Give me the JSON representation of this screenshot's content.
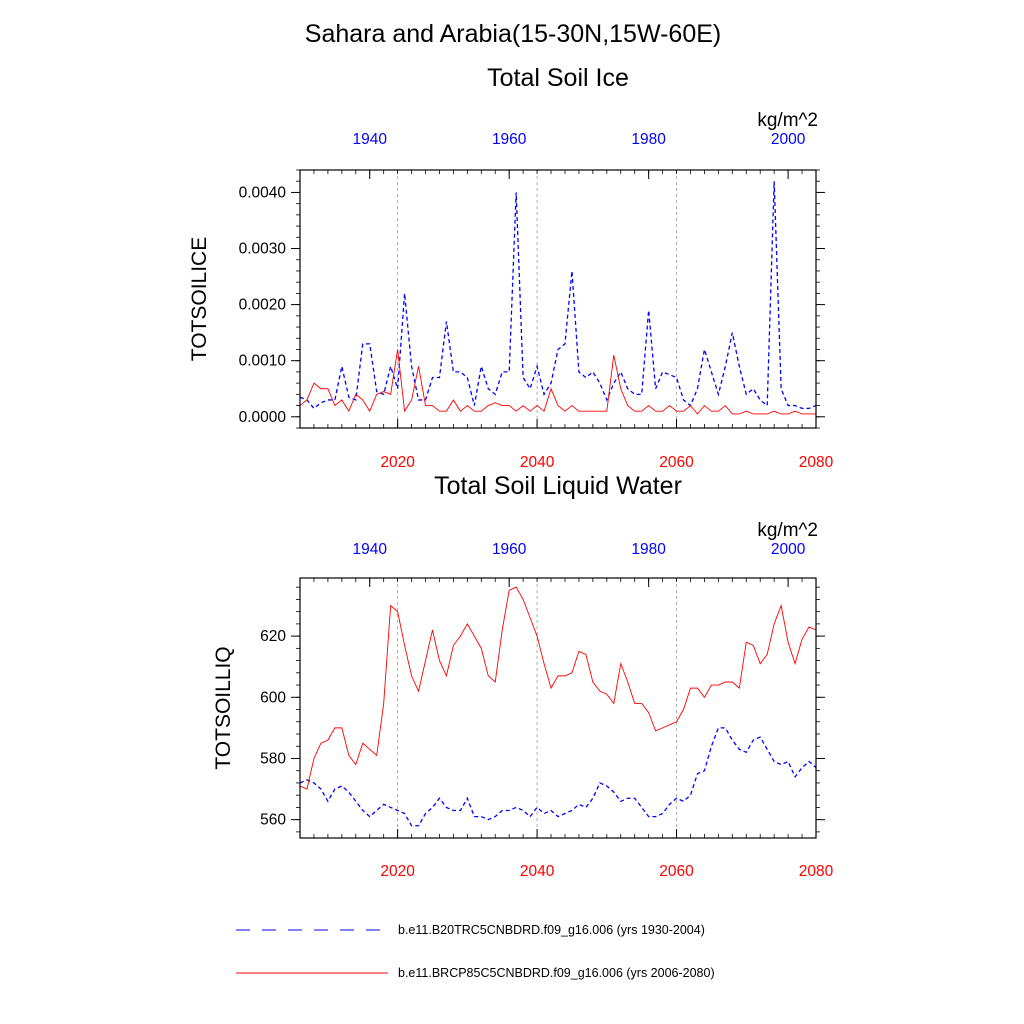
{
  "main_title": "Sahara and Arabia(15-30N,15W-60E)",
  "legend": [
    {
      "label": "b.e11.B20TRC5CNBDRD.f09_g16.006 (yrs 1930-2004)",
      "color": "#0000ff",
      "style": "dashed"
    },
    {
      "label": "b.e11.BRCP85C5CNBDRD.f09_g16.006 (yrs 2006-2080)",
      "color": "#ff0000",
      "style": "solid"
    }
  ],
  "colors": {
    "historical": "#0000ff",
    "future": "#ff0000",
    "grid": "#999999"
  },
  "chart_data": [
    {
      "type": "line",
      "title": "Total Soil Ice",
      "ylabel": "TOTSOILICE",
      "units": "kg/m^2",
      "ylim": [
        -0.0002,
        0.0044
      ],
      "yticks": [
        0.0,
        0.001,
        0.002,
        0.003,
        0.004
      ],
      "ytick_labels": [
        "0.0000",
        "0.0010",
        "0.0020",
        "0.0030",
        "0.0040"
      ],
      "bottom_xaxis": {
        "range": [
          2006,
          2080
        ],
        "ticks": [
          2020,
          2040,
          2060,
          2080
        ],
        "color": "#ff0000"
      },
      "top_xaxis": {
        "range": [
          1930,
          2004
        ],
        "ticks": [
          1940,
          1960,
          1980,
          2000
        ],
        "color": "#0000ff"
      },
      "vertical_gridlines": [
        2020,
        2040,
        2060
      ],
      "series": [
        {
          "name": "b.e11.B20TRC5CNBDRD.f09_g16.006 (yrs 1930-2004)",
          "axis": "top",
          "start": 1930,
          "color": "#0000ff",
          "dash": true,
          "values": [
            0.00035,
            0.0003,
            0.00015,
            0.00025,
            0.0003,
            0.0003,
            0.0009,
            0.00035,
            0.0003,
            0.0013,
            0.0013,
            0.00045,
            0.0004,
            0.0009,
            0.0005,
            0.0022,
            0.0009,
            0.0003,
            0.0003,
            0.0007,
            0.0007,
            0.0017,
            0.0008,
            0.0008,
            0.0007,
            0.0002,
            0.0009,
            0.0005,
            0.0004,
            0.0008,
            0.0008,
            0.004,
            0.0007,
            0.0005,
            0.0009,
            0.0004,
            0.0006,
            0.0012,
            0.0013,
            0.0026,
            0.0008,
            0.0007,
            0.0008,
            0.0006,
            0.0003,
            0.0006,
            0.0008,
            0.0005,
            0.0004,
            0.0004,
            0.0019,
            0.0005,
            0.0008,
            0.00075,
            0.0007,
            0.0003,
            0.0002,
            0.0005,
            0.0012,
            0.0008,
            0.0004,
            0.0009,
            0.0015,
            0.0009,
            0.0004,
            0.0005,
            0.0003,
            0.0002,
            0.0042,
            0.0005,
            0.0002,
            0.0002,
            0.00015,
            0.00015,
            0.0002
          ]
        },
        {
          "name": "b.e11.BRCP85C5CNBDRD.f09_g16.006 (yrs 2006-2080)",
          "axis": "bottom",
          "start": 2006,
          "color": "#ff0000",
          "dash": false,
          "values": [
            0.0002,
            0.0003,
            0.0006,
            0.0005,
            0.0005,
            0.0002,
            0.0003,
            0.0001,
            0.0004,
            0.0003,
            0.0001,
            0.0004,
            0.00045,
            0.0004,
            0.0012,
            0.0001,
            0.0003,
            0.0009,
            0.0002,
            0.0002,
            0.0001,
            0.0001,
            0.0003,
            0.0001,
            0.0002,
            0.0001,
            0.0001,
            0.0002,
            0.00025,
            0.0002,
            0.0002,
            0.0001,
            0.0002,
            0.0001,
            0.0002,
            0.0001,
            0.0005,
            0.0002,
            0.0001,
            0.0002,
            0.0001,
            0.0001,
            0.0001,
            0.0001,
            0.0001,
            0.0011,
            0.0005,
            0.0002,
            0.0001,
            0.0001,
            0.0002,
            0.0001,
            0.0001,
            0.0002,
            0.0001,
            0.0001,
            0.0002,
            5e-05,
            0.0002,
            0.0001,
            0.0001,
            0.0002,
            5e-05,
            5e-05,
            0.0001,
            5e-05,
            5e-05,
            5e-05,
            0.0001,
            5e-05,
            5e-05,
            0.0001,
            5e-05,
            5e-05,
            5e-05
          ]
        }
      ]
    },
    {
      "type": "line",
      "title": "Total Soil Liquid Water",
      "ylabel": "TOTSOILLIQ",
      "units": "kg/m^2",
      "ylim": [
        554,
        639
      ],
      "yticks": [
        560,
        580,
        600,
        620
      ],
      "ytick_labels": [
        "560",
        "580",
        "600",
        "620"
      ],
      "bottom_xaxis": {
        "range": [
          2006,
          2080
        ],
        "ticks": [
          2020,
          2040,
          2060,
          2080
        ],
        "color": "#ff0000"
      },
      "top_xaxis": {
        "range": [
          1930,
          2004
        ],
        "ticks": [
          1940,
          1960,
          1980,
          2000
        ],
        "color": "#0000ff"
      },
      "vertical_gridlines": [
        2020,
        2040,
        2060
      ],
      "series": [
        {
          "name": "b.e11.B20TRC5CNBDRD.f09_g16.006 (yrs 1930-2004)",
          "axis": "top",
          "start": 1930,
          "color": "#0000ff",
          "dash": true,
          "values": [
            572,
            573,
            572,
            570,
            566,
            570,
            571,
            569,
            566,
            563,
            561,
            563,
            565,
            564,
            563,
            562,
            558,
            558,
            562,
            564,
            567,
            564,
            563,
            563,
            567,
            561,
            561,
            560,
            561,
            563,
            563,
            564,
            563,
            561,
            564,
            562,
            563,
            561,
            562,
            563,
            565,
            564,
            567,
            572,
            571,
            569,
            566,
            567,
            567,
            564,
            561,
            561,
            562,
            565,
            567,
            566,
            568,
            575,
            576,
            584,
            590,
            590,
            586,
            583,
            582,
            586,
            587,
            583,
            579,
            578,
            579,
            574,
            577,
            579,
            577
          ]
        },
        {
          "name": "b.e11.BRCP85C5CNBDRD.f09_g16.006 (yrs 2006-2080)",
          "axis": "bottom",
          "start": 2006,
          "color": "#ff0000",
          "dash": false,
          "values": [
            571,
            570,
            580,
            585,
            586,
            590,
            590,
            581,
            578,
            585,
            583,
            581,
            598,
            630,
            628,
            617,
            607,
            602,
            612,
            622,
            612,
            607,
            617,
            620,
            624,
            620,
            616,
            607,
            605,
            622,
            635,
            636,
            632,
            626,
            620,
            611,
            603,
            607,
            607,
            608,
            615,
            614,
            605,
            602,
            601,
            598,
            611,
            605,
            598,
            598,
            595,
            589,
            590,
            591,
            592,
            596,
            603,
            603,
            600,
            604,
            604,
            605,
            605,
            603,
            618,
            617,
            611,
            614,
            624,
            630,
            618,
            611,
            619,
            623,
            622
          ]
        }
      ]
    }
  ]
}
